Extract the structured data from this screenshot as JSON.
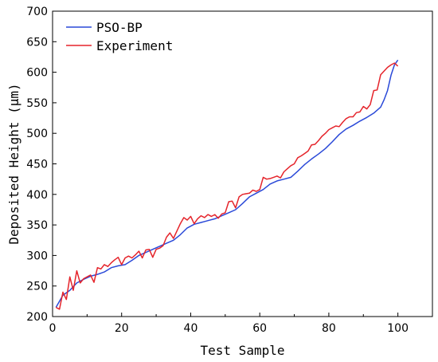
{
  "chart_data": {
    "type": "line",
    "title": "",
    "xlabel": "Test Sample",
    "ylabel": "Deposited Height (μm)",
    "xlim": [
      0,
      110
    ],
    "ylim": [
      200,
      700
    ],
    "xticks": [
      0,
      20,
      40,
      60,
      80,
      100
    ],
    "yticks": [
      200,
      250,
      300,
      350,
      400,
      450,
      500,
      550,
      600,
      650,
      700
    ],
    "legend": "top-left",
    "grid": false,
    "series": [
      {
        "name": "PSO-BP",
        "color": "#2a49d8",
        "x": [
          1,
          3,
          5,
          7,
          9,
          11,
          13,
          15,
          17,
          19,
          21,
          23,
          25,
          27,
          29,
          31,
          33,
          35,
          37,
          39,
          41,
          43,
          45,
          47,
          49,
          51,
          53,
          55,
          57,
          59,
          61,
          63,
          65,
          67,
          69,
          71,
          73,
          75,
          77,
          79,
          81,
          83,
          85,
          87,
          89,
          91,
          93,
          95,
          96,
          97,
          98,
          99,
          100
        ],
        "y": [
          215,
          235,
          243,
          255,
          261,
          266,
          269,
          273,
          280,
          283,
          285,
          292,
          300,
          305,
          310,
          315,
          320,
          325,
          334,
          345,
          351,
          354,
          357,
          360,
          365,
          370,
          375,
          385,
          396,
          402,
          408,
          417,
          422,
          425,
          428,
          438,
          449,
          458,
          466,
          475,
          486,
          498,
          507,
          513,
          520,
          526,
          533,
          543,
          555,
          570,
          595,
          612,
          620
        ]
      },
      {
        "name": "Experiment",
        "color": "#e5242b",
        "x": [
          1,
          2,
          3,
          4,
          5,
          6,
          7,
          8,
          9,
          10,
          11,
          12,
          13,
          14,
          15,
          16,
          17,
          18,
          19,
          20,
          21,
          22,
          23,
          24,
          25,
          26,
          27,
          28,
          29,
          30,
          31,
          32,
          33,
          34,
          35,
          36,
          37,
          38,
          39,
          40,
          41,
          42,
          43,
          44,
          45,
          46,
          47,
          48,
          49,
          50,
          51,
          52,
          53,
          54,
          55,
          56,
          57,
          58,
          59,
          60,
          61,
          62,
          63,
          64,
          65,
          66,
          67,
          68,
          69,
          70,
          71,
          72,
          73,
          74,
          75,
          76,
          77,
          78,
          79,
          80,
          81,
          82,
          83,
          84,
          85,
          86,
          87,
          88,
          89,
          90,
          91,
          92,
          93,
          94,
          95,
          96,
          97,
          98,
          99,
          100
        ],
        "y": [
          215,
          212,
          240,
          228,
          265,
          243,
          275,
          255,
          262,
          265,
          268,
          256,
          280,
          278,
          285,
          282,
          288,
          293,
          297,
          285,
          296,
          299,
          296,
          301,
          307,
          296,
          309,
          310,
          297,
          310,
          312,
          316,
          330,
          337,
          328,
          340,
          352,
          362,
          358,
          364,
          352,
          360,
          365,
          362,
          367,
          364,
          367,
          361,
          368,
          370,
          388,
          389,
          378,
          396,
          400,
          401,
          402,
          407,
          405,
          408,
          428,
          425,
          426,
          428,
          430,
          427,
          437,
          442,
          447,
          450,
          460,
          463,
          467,
          471,
          481,
          482,
          488,
          495,
          500,
          506,
          509,
          512,
          511,
          518,
          524,
          527,
          527,
          534,
          535,
          544,
          540,
          547,
          570,
          571,
          596,
          602,
          608,
          612,
          615,
          610
        ]
      }
    ]
  }
}
